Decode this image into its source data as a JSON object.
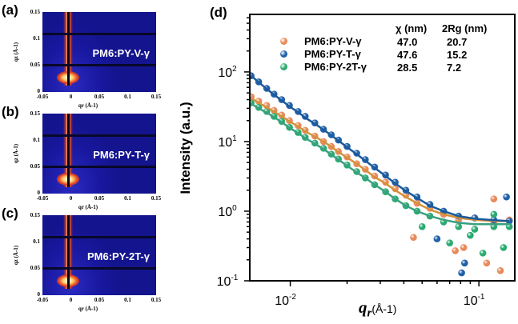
{
  "panels": [
    {
      "label": "(a)",
      "name": "PM6:PY-V-γ"
    },
    {
      "label": "(b)",
      "name": "PM6:PY-T-γ"
    },
    {
      "label": "(c)",
      "name": "PM6:PY-2T-γ"
    }
  ],
  "panel_axes": {
    "xticks": [
      "-0.05",
      "0",
      "0.05",
      "0.1",
      "0.15"
    ],
    "yticks": [
      "0.15",
      "0.1",
      "0.05",
      "0"
    ],
    "xlabel": "qr (Å-1)",
    "ylabel": "qz (Å-1)"
  },
  "chart_data": {
    "type": "scatter",
    "panel_label": "(d)",
    "xlabel": "qr (Å-1)",
    "xlabel_var": "q",
    "xlabel_sub": "r",
    "xlabel_unit": "(Å-1)",
    "ylabel": "Intensity (a.u.)",
    "xscale": "log",
    "yscale": "log",
    "xlim": [
      0.0061,
      0.155
    ],
    "ylim": [
      0.1,
      670
    ],
    "xticks": [
      {
        "v": 0.01,
        "base": "10",
        "exp": "-2"
      },
      {
        "v": 0.1,
        "base": "10",
        "exp": "-1"
      }
    ],
    "yticks": [
      {
        "v": 100,
        "base": "10",
        "exp": "2"
      },
      {
        "v": 10,
        "base": "10",
        "exp": "1"
      },
      {
        "v": 1,
        "base": "10",
        "exp": "0"
      },
      {
        "v": 0.1,
        "base": "10",
        "exp": "-1"
      }
    ],
    "legend_headers": [
      "χ (nm)",
      "2Rg (nm)"
    ],
    "x": [
      0.0062,
      0.0068,
      0.0075,
      0.0082,
      0.009,
      0.0099,
      0.011,
      0.012,
      0.0135,
      0.015,
      0.0165,
      0.018,
      0.02,
      0.0225,
      0.025,
      0.028,
      0.032,
      0.036,
      0.041,
      0.047,
      0.055,
      0.065,
      0.078,
      0.095,
      0.12,
      0.145
    ],
    "series": [
      {
        "name": "PM6:PY-V-γ",
        "chi": "47.0",
        "rg2": "20.7",
        "color": "#e8895a",
        "fit_color": "#d4923a",
        "values": [
          44,
          38,
          33,
          28,
          24,
          20,
          17,
          14.5,
          12,
          10,
          8.5,
          7.2,
          6,
          4.8,
          4,
          3.2,
          2.6,
          2.1,
          1.7,
          1.3,
          1.1,
          0.9,
          0.75,
          0.8,
          0.7,
          0.75
        ],
        "outliers": [
          [
            0.045,
            0.42
          ],
          [
            0.075,
            0.27
          ],
          [
            0.083,
            0.3
          ],
          [
            0.11,
            0.18
          ],
          [
            0.13,
            0.14
          ],
          [
            0.12,
            1.5
          ]
        ]
      },
      {
        "name": "PM6:PY-T-γ",
        "chi": "47.6",
        "rg2": "15.2",
        "color": "#2060a8",
        "fit_color": "#1a5a9a",
        "values": [
          88,
          72,
          58,
          48,
          40,
          33,
          27,
          23,
          18.5,
          15,
          12.5,
          10.5,
          8.5,
          6.8,
          5.5,
          4.3,
          3.3,
          2.6,
          2.0,
          1.6,
          1.25,
          1.0,
          0.85,
          0.8,
          0.75,
          0.72
        ],
        "outliers": [
          [
            0.084,
            0.18
          ],
          [
            0.081,
            0.13
          ],
          [
            0.06,
            0.4
          ],
          [
            0.14,
            1.6
          ]
        ]
      },
      {
        "name": "PM6:PY-2T-γ",
        "chi": "28.5",
        "rg2": "7.2",
        "color": "#2aaa70",
        "fit_color": "#3aa080",
        "values": [
          36,
          31,
          27,
          23,
          19.5,
          16,
          13.5,
          11.5,
          9.5,
          8,
          6.6,
          5.6,
          4.6,
          3.7,
          3,
          2.4,
          1.9,
          1.5,
          1.2,
          1.0,
          0.85,
          0.7,
          0.6,
          0.55,
          0.6,
          0.6
        ],
        "outliers": [
          [
            0.07,
            0.35
          ],
          [
            0.09,
            0.45
          ],
          [
            0.105,
            0.25
          ],
          [
            0.12,
            0.9
          ],
          [
            0.135,
            0.3
          ],
          [
            0.05,
            0.6
          ]
        ]
      }
    ],
    "fits": [
      [
        42,
        36,
        31,
        27,
        23,
        19.5,
        16.5,
        14,
        11.8,
        10,
        8.4,
        7.1,
        5.9,
        4.8,
        3.9,
        3.1,
        2.5,
        2.0,
        1.6,
        1.3,
        1.05,
        0.9,
        0.8,
        0.75,
        0.72,
        0.72
      ],
      [
        88,
        71,
        57,
        47,
        39,
        32,
        26.5,
        22,
        18,
        14.8,
        12.3,
        10.3,
        8.3,
        6.6,
        5.3,
        4.2,
        3.2,
        2.5,
        1.95,
        1.55,
        1.2,
        1.0,
        0.85,
        0.78,
        0.74,
        0.72
      ],
      [
        35,
        30,
        26,
        22.5,
        19,
        15.8,
        13.2,
        11.2,
        9.3,
        7.8,
        6.5,
        5.5,
        4.5,
        3.6,
        3.0,
        2.4,
        1.9,
        1.5,
        1.2,
        1.0,
        0.85,
        0.75,
        0.68,
        0.65,
        0.65,
        0.65
      ]
    ]
  }
}
